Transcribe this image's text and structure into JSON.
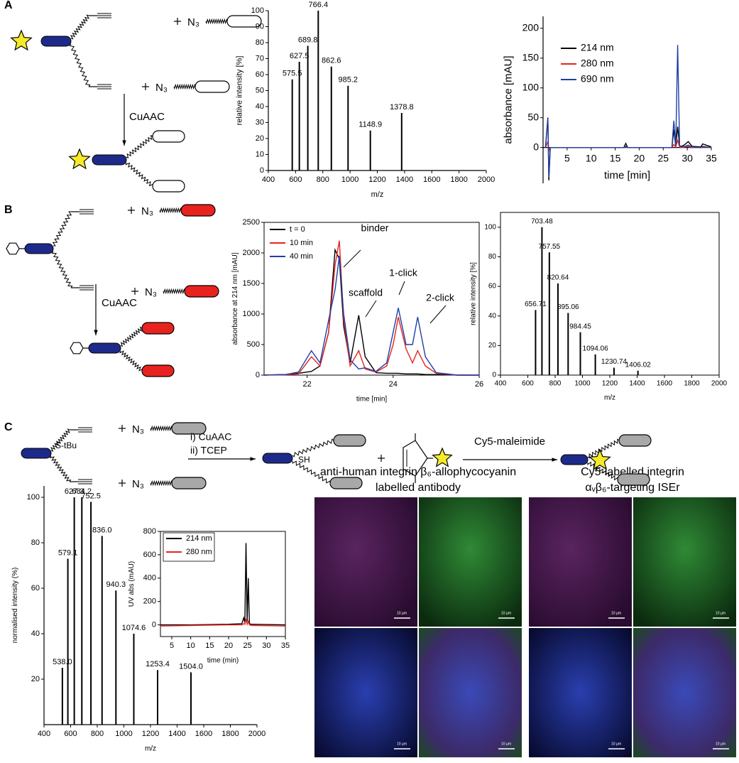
{
  "panel_labels": [
    "A",
    "B",
    "C"
  ],
  "scheme_a": {
    "reagent": "N₃",
    "reaction": "CuAAC"
  },
  "scheme_b": {
    "reagent": "N₃",
    "reaction": "CuAAC"
  },
  "scheme_c": {
    "reagent": "N₃",
    "protecting_group": "S-tBu",
    "steps": [
      "i) CuAAC",
      "ii) TCEP"
    ],
    "thiol": "SH",
    "reagent_2": "Cy5-maleimide"
  },
  "micrographs": [
    {
      "title": [
        "anti-human integrin β₆-allophycocyanin",
        "labelled antibody"
      ],
      "scale_bar": "10 µm"
    },
    {
      "title": [
        "Cy5-labelled integrin",
        "αᵥβ₆-targeting ISEr"
      ],
      "scale_bar": "10 µm"
    }
  ],
  "chart_data": [
    {
      "type": "bar",
      "ylabel": "relative intensity [%]",
      "xlabel": "m/z",
      "color": "#000000",
      "x": [
        575.5,
        627.5,
        689.8,
        766.4,
        862.6,
        985.2,
        1148.9,
        1378.8
      ],
      "values": [
        57,
        68,
        78,
        100,
        65,
        53,
        25,
        36
      ],
      "xlim": [
        400,
        2000
      ],
      "xticks": [
        400,
        600,
        800,
        1000,
        1200,
        1400,
        1600,
        1800,
        2000
      ],
      "ylim": [
        0,
        100
      ],
      "yticks": [
        0,
        10,
        20,
        30,
        40,
        50,
        60,
        70,
        80,
        90,
        100
      ]
    },
    {
      "type": "line",
      "ylabel": "absorbance [mAU]",
      "xlabel": "time [min]",
      "legend": "upper left",
      "x": [
        0.5,
        1,
        1.2,
        1.5,
        3,
        10,
        16.8,
        17.2,
        17.6,
        20,
        26.8,
        27.2,
        27.6,
        28,
        28.4,
        28.8,
        29.5,
        30.2,
        31,
        32.8,
        33.2,
        35
      ],
      "series": [
        {
          "name": "214 nm",
          "color": "#000000",
          "values": [
            0,
            50,
            -55,
            0,
            0,
            0,
            0,
            7,
            0,
            0,
            0,
            30,
            2,
            35,
            3,
            2,
            5,
            10,
            2,
            1,
            6,
            1
          ]
        },
        {
          "name": "280 nm",
          "color": "#e8231f",
          "values": [
            0,
            10,
            -5,
            0,
            0,
            0,
            0,
            1,
            0,
            0,
            0,
            5,
            1,
            12,
            1,
            0,
            1,
            2,
            0,
            0,
            1,
            0
          ]
        },
        {
          "name": "690 nm",
          "color": "#1f3fa8",
          "values": [
            0,
            48,
            -50,
            0,
            0,
            0,
            0,
            2,
            0,
            0,
            0,
            45,
            3,
            172,
            3,
            1,
            2,
            4,
            1,
            0,
            2,
            0
          ]
        }
      ],
      "xlim": [
        0,
        35
      ],
      "xticks": [
        5,
        10,
        15,
        20,
        25,
        30,
        35
      ],
      "ylim": [
        -60,
        220
      ],
      "yticks": [
        0,
        50,
        100,
        150,
        200
      ]
    },
    {
      "type": "line",
      "ylabel": "absorbance at 214 nm [mAU]",
      "xlabel": "time [min]",
      "legend": "upper left",
      "annotations": [
        "binder",
        "scaffold",
        "1-click",
        "2-click"
      ],
      "x": [
        21,
        21.5,
        21.8,
        22.1,
        22.3,
        22.5,
        22.65,
        22.75,
        22.85,
        23.0,
        23.2,
        23.35,
        23.6,
        23.85,
        24.0,
        24.12,
        24.3,
        24.45,
        24.57,
        24.75,
        25,
        25.5,
        26
      ],
      "series": [
        {
          "name": "t = 0",
          "color": "#000000",
          "values": [
            0,
            10,
            30,
            60,
            150,
            700,
            2050,
            1900,
            800,
            200,
            980,
            300,
            40,
            30,
            30,
            30,
            20,
            20,
            20,
            10,
            10,
            0,
            0
          ]
        },
        {
          "name": "10 min",
          "color": "#e8231f",
          "values": [
            0,
            5,
            20,
            300,
            150,
            700,
            1800,
            2200,
            900,
            150,
            400,
            100,
            50,
            150,
            500,
            950,
            430,
            200,
            400,
            150,
            30,
            0,
            0
          ]
        },
        {
          "name": "40 min",
          "color": "#1f3fa8",
          "values": [
            0,
            10,
            50,
            400,
            200,
            900,
            1400,
            1950,
            1000,
            250,
            100,
            120,
            60,
            200,
            700,
            1100,
            500,
            500,
            950,
            300,
            40,
            0,
            0
          ]
        }
      ],
      "xlim": [
        21,
        26
      ],
      "xticks": [
        22,
        24,
        26
      ],
      "ylim": [
        0,
        2500
      ],
      "yticks": [
        0,
        500,
        1000,
        1500,
        2000,
        2500
      ]
    },
    {
      "type": "bar",
      "ylabel": "relative intensity [%]",
      "xlabel": "m/z",
      "color": "#000000",
      "x": [
        656.71,
        703.48,
        757.55,
        820.64,
        895.06,
        984.45,
        1094.06,
        1230.74,
        1406.02
      ],
      "values": [
        44,
        100,
        83,
        62,
        42,
        29,
        14,
        5,
        3
      ],
      "xlim": [
        400,
        2000
      ],
      "xticks": [
        400,
        600,
        800,
        1000,
        1200,
        1400,
        1600,
        1800,
        2000
      ],
      "ylim": [
        0,
        110
      ],
      "yticks": [
        0,
        20,
        40,
        60,
        80,
        100
      ]
    },
    {
      "type": "bar",
      "ylabel": "normalised intensity (%)",
      "xlabel": "m/z",
      "color": "#000000",
      "x": [
        538.0,
        579.1,
        627.3,
        684.2,
        752.5,
        836.0,
        940.3,
        1074.6,
        1253.4,
        1504.0
      ],
      "x_labels": [
        "538.0",
        "579.1",
        "627.3",
        "684.2",
        "752.5",
        "836.0",
        "940.3",
        "1074.6",
        "1253.4",
        "1504.0"
      ],
      "values": [
        25,
        73,
        100,
        100,
        98,
        83,
        59,
        40,
        24,
        23
      ],
      "xlim": [
        400,
        2000
      ],
      "xticks": [
        400,
        600,
        800,
        1000,
        1200,
        1400,
        1600,
        1800,
        2000
      ],
      "ylim": [
        0,
        105
      ],
      "yticks": [
        20,
        40,
        60,
        80,
        100
      ]
    },
    {
      "type": "line",
      "ylabel": "UV abs (mAU)",
      "xlabel": "time (min)",
      "legend": "upper left",
      "x": [
        2,
        10,
        20,
        23.5,
        24,
        24.3,
        24.6,
        24.9,
        25.2,
        25.5,
        26,
        35
      ],
      "series": [
        {
          "name": "214 nm",
          "color": "#000000",
          "values": [
            0,
            0,
            5,
            10,
            60,
            20,
            700,
            30,
            400,
            10,
            5,
            0
          ]
        },
        {
          "name": "280 nm",
          "color": "#e8231f",
          "values": [
            -10,
            -5,
            0,
            0,
            10,
            5,
            50,
            5,
            30,
            0,
            -5,
            -10
          ]
        }
      ],
      "xlim": [
        2,
        35
      ],
      "xticks": [
        5,
        10,
        15,
        20,
        25,
        30,
        35
      ],
      "ylim": [
        -100,
        800
      ],
      "yticks": [
        0,
        200,
        400,
        600,
        800
      ]
    }
  ]
}
